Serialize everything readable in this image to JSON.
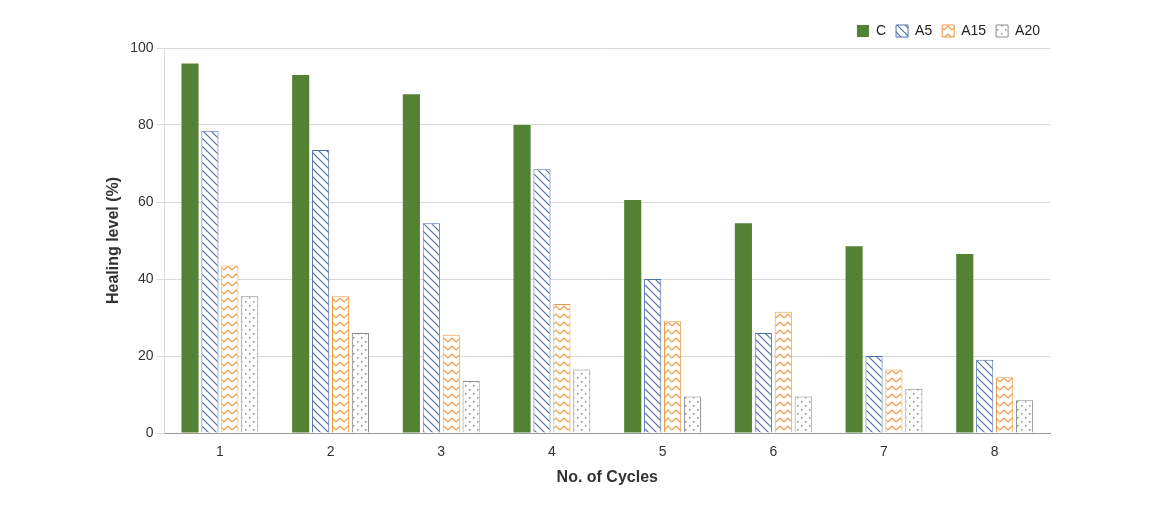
{
  "chart_data": {
    "type": "bar",
    "x_label": "No. of Cycles",
    "y_label": "Healing level (%)",
    "categories": [
      "1",
      "2",
      "3",
      "4",
      "5",
      "6",
      "7",
      "8"
    ],
    "series": [
      {
        "name": "C",
        "color": "#548235",
        "values": [
          96,
          93,
          88,
          80,
          60.5,
          54.5,
          48.5,
          46.5
        ]
      },
      {
        "name": "A5",
        "color": "#4f6fa8",
        "values": [
          78.5,
          73.5,
          54.5,
          68.5,
          40,
          26,
          20,
          19
        ]
      },
      {
        "name": "A15",
        "color": "#ed9a45",
        "values": [
          43.5,
          35.5,
          25.5,
          33.5,
          29,
          31.5,
          16.5,
          14.5
        ]
      },
      {
        "name": "A20",
        "color": "#8c8c8c",
        "values": [
          35.5,
          26,
          13.5,
          16.5,
          9.5,
          9.5,
          11.5,
          8.5
        ]
      }
    ],
    "ylim": [
      0,
      100
    ],
    "yticks": [
      0,
      20,
      40,
      60,
      80,
      100
    ],
    "grid": true,
    "legend": "top-right"
  }
}
